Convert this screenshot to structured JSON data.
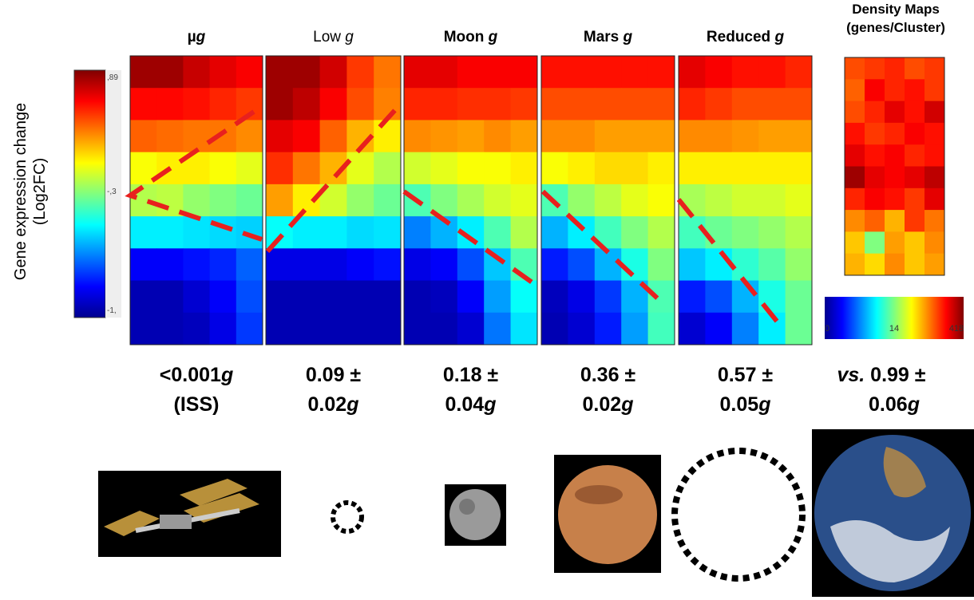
{
  "y_axis_label": [
    "Gene expression change",
    "(Log2FC)"
  ],
  "colorbar_labels": [
    ",89",
    "-,3",
    "-1,"
  ],
  "density_title": [
    "Density Maps",
    "(genes/Cluster)"
  ],
  "density_colorbar_labels": [
    "0",
    "14",
    "418"
  ],
  "panels": [
    {
      "title_bold": true,
      "title": [
        {
          "text": "µ"
        },
        {
          "text": "g",
          "italic": true
        }
      ],
      "lines": [
        [
          {
            "text": "<0.001"
          },
          {
            "text": "g",
            "italic": true
          }
        ],
        [
          {
            "text": "(ISS)"
          }
        ]
      ]
    },
    {
      "title_bold": false,
      "title": [
        {
          "text": "Low "
        },
        {
          "text": "g",
          "italic": true
        }
      ],
      "lines": [
        [
          {
            "text": "0.09 ±"
          }
        ],
        [
          {
            "text": "0.02"
          },
          {
            "text": "g",
            "italic": true
          }
        ]
      ]
    },
    {
      "title_bold": true,
      "title": [
        {
          "text": "Moon "
        },
        {
          "text": "g",
          "italic": true
        }
      ],
      "lines": [
        [
          {
            "text": "0.18 ±"
          }
        ],
        [
          {
            "text": "0.04"
          },
          {
            "text": "g",
            "italic": true
          }
        ]
      ]
    },
    {
      "title_bold": true,
      "title": [
        {
          "text": "Mars "
        },
        {
          "text": "g",
          "italic": true
        }
      ],
      "lines": [
        [
          {
            "text": "0.36 ±"
          }
        ],
        [
          {
            "text": "0.02"
          },
          {
            "text": "g",
            "italic": true
          }
        ]
      ]
    },
    {
      "title_bold": true,
      "title": [
        {
          "text": "Reduced "
        },
        {
          "text": "g",
          "italic": true
        }
      ],
      "lines": [
        [
          {
            "text": "0.57 ±"
          }
        ],
        [
          {
            "text": "0.05"
          },
          {
            "text": "g",
            "italic": true
          }
        ]
      ]
    }
  ],
  "earth_lines": [
    [
      {
        "text": "vs.",
        "italic": true
      },
      {
        "text": " 0.99 ±"
      }
    ],
    [
      {
        "text": "0.06"
      },
      {
        "text": "g",
        "italic": true
      }
    ]
  ]
}
